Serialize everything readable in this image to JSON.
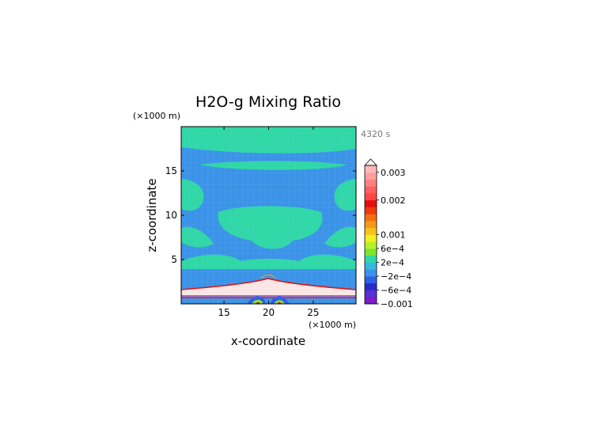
{
  "chart_data": {
    "type": "heatmap",
    "title": "H2O-g Mixing Ratio",
    "xlabel": "x-coordinate",
    "ylabel": "z-coordinate",
    "x_unit": "(×1000 m)",
    "y_unit": "(×1000 m)",
    "time_label": "4320 s",
    "xlim": [
      10.2,
      29.8
    ],
    "ylim": [
      0,
      20
    ],
    "x_ticks": [
      15,
      20,
      25
    ],
    "y_ticks": [
      5,
      10,
      15
    ],
    "colorbar": {
      "levels": [
        {
          "value": -0.001,
          "label": "-0.001",
          "color": "#7a1fc8"
        },
        {
          "value": -0.0008,
          "label": "",
          "color": "#5a2fd0"
        },
        {
          "value": -0.0006,
          "label": "-6e-4",
          "color": "#2a2acc"
        },
        {
          "value": -0.0004,
          "label": "",
          "color": "#2f5fe6"
        },
        {
          "value": -0.0002,
          "label": "-2e-4",
          "color": "#3b93e8"
        },
        {
          "value": 0,
          "label": "",
          "color": "#36b8e0"
        },
        {
          "value": 0.0002,
          "label": "2e-4",
          "color": "#2fd8a6"
        },
        {
          "value": 0.0004,
          "label": "",
          "color": "#7ee52e"
        },
        {
          "value": 0.0006,
          "label": "6e-4",
          "color": "#b8f02a"
        },
        {
          "value": 0.0008,
          "label": "",
          "color": "#f1f020"
        },
        {
          "value": 0.001,
          "label": "0.001",
          "color": "#f7c21c"
        },
        {
          "value": 0.0012,
          "label": "",
          "color": "#f59a16"
        },
        {
          "value": 0.0014,
          "label": "",
          "color": "#f26e10"
        },
        {
          "value": 0.0016,
          "label": "",
          "color": "#ee3a0e"
        },
        {
          "value": 0.0018,
          "label": "",
          "color": "#e4100c"
        },
        {
          "value": 0.002,
          "label": "0.002",
          "color": "#ff4646"
        },
        {
          "value": 0.0022,
          "label": "",
          "color": "#ff6060"
        },
        {
          "value": 0.0024,
          "label": "",
          "color": "#ff8080"
        },
        {
          "value": 0.0026,
          "label": "",
          "color": "#ffa0a0"
        },
        {
          "value": 0.003,
          "label": "0.003",
          "color": "#ffb8b8"
        }
      ]
    },
    "field_colors": {
      "background": "#3b93e8",
      "band": "#2fd8a6",
      "surface_layer": "#fbe6e6",
      "layer_edge_top": "#e4100c",
      "layer_edge_bottom": "#3b2fd0"
    }
  }
}
